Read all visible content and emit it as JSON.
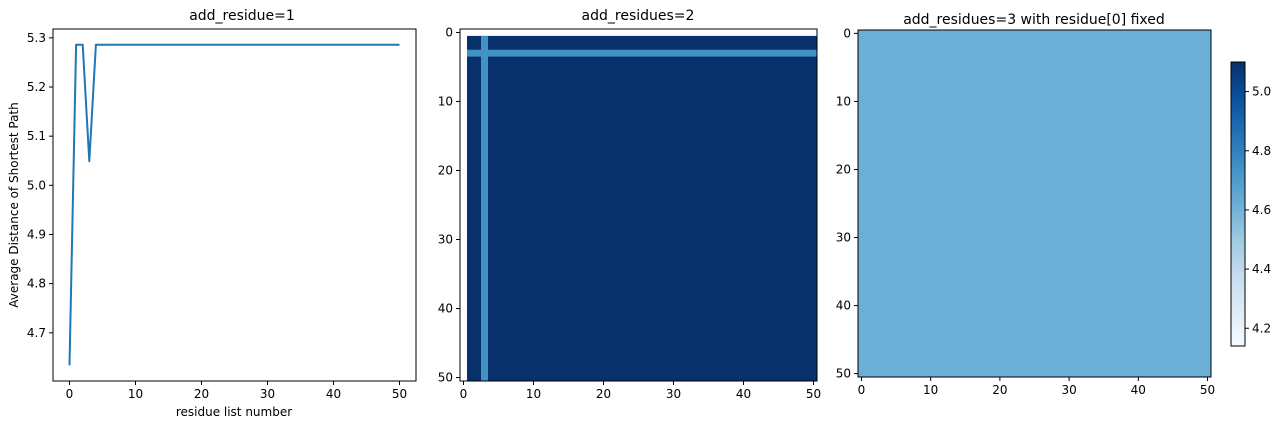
{
  "chart_data": [
    {
      "type": "line",
      "title": "add_residue=1",
      "xlabel": "residue list number",
      "ylabel": "Average Distance of Shortest Path",
      "xlim": [
        -2.5,
        52.5
      ],
      "ylim": [
        4.602,
        5.318
      ],
      "xticks": [
        0,
        10,
        20,
        30,
        40,
        50
      ],
      "yticks": [
        4.7,
        4.8,
        4.9,
        5.0,
        5.1,
        5.2,
        5.3
      ],
      "ytick_labels": [
        "4.7",
        "4.8",
        "4.9",
        "5.0",
        "5.1",
        "5.2",
        "5.3"
      ],
      "color": "#1f77b4",
      "series": [
        {
          "x": [
            0,
            1,
            2,
            3,
            4,
            50
          ],
          "y": [
            4.634,
            5.286,
            5.286,
            5.049,
            5.286,
            5.286
          ]
        }
      ]
    },
    {
      "type": "heatmap",
      "title": "add_residues=2",
      "xlim": [
        -0.5,
        50.5
      ],
      "ylim": [
        50.5,
        -0.5
      ],
      "xticks": [
        0,
        10,
        20,
        30,
        40,
        50
      ],
      "yticks": [
        0,
        10,
        20,
        30,
        40,
        50
      ],
      "colormap": "Blues",
      "base_color": "#08306b",
      "band_color": "#4292c6",
      "blank_row": 0,
      "blank_col": 0,
      "highlight_row": 3,
      "highlight_col": 3,
      "description": "row 0 and column 0 empty; row 3 and column 3 lighter; rest uniform dark"
    },
    {
      "type": "heatmap",
      "title": "add_residues=3 with residue[0] fixed",
      "xlim": [
        -0.5,
        50.5
      ],
      "ylim": [
        50.5,
        -0.5
      ],
      "xticks": [
        0,
        10,
        20,
        30,
        40,
        50
      ],
      "yticks": [
        0,
        10,
        20,
        30,
        40,
        50
      ],
      "colormap": "Blues",
      "uniform_value": 4.75,
      "uniform_color": "#6baed6",
      "colorbar": {
        "vmin": 4.14,
        "vmax": 5.1,
        "ticks": [
          4.2,
          4.4,
          4.6,
          4.8,
          5.0
        ],
        "tick_labels": [
          "4.2",
          "4.4",
          "4.6",
          "4.8",
          "5.0"
        ]
      }
    }
  ]
}
